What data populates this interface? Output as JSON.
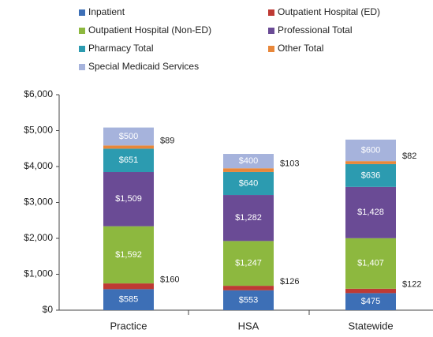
{
  "chart_data": {
    "type": "stacked_bar",
    "categories": [
      "Practice",
      "HSA",
      "Statewide"
    ],
    "ylim": [
      0,
      6000
    ],
    "yticks": [
      {
        "value": 0,
        "label": "$0"
      },
      {
        "value": 1000,
        "label": "$1,000"
      },
      {
        "value": 2000,
        "label": "$2,000"
      },
      {
        "value": 3000,
        "label": "$3,000"
      },
      {
        "value": 4000,
        "label": "$4,000"
      },
      {
        "value": 5000,
        "label": "$5,000"
      },
      {
        "value": 6000,
        "label": "$6,000"
      }
    ],
    "series": [
      {
        "name": "Inpatient",
        "color": "#3d6fb6",
        "values": [
          585,
          553,
          475
        ],
        "value_labels": [
          "$585",
          "$553",
          "$475"
        ]
      },
      {
        "name": "Outpatient Hospital (ED)",
        "color": "#be3a34",
        "values": [
          160,
          126,
          122
        ],
        "value_labels": [
          "$160",
          "$126",
          "$122"
        ]
      },
      {
        "name": "Outpatient Hospital (Non-ED)",
        "color": "#8db83f",
        "values": [
          1592,
          1247,
          1407
        ],
        "value_labels": [
          "$1,592",
          "$1,247",
          "$1,407"
        ]
      },
      {
        "name": "Professional Total",
        "color": "#6a4b95",
        "values": [
          1509,
          1282,
          1428
        ],
        "value_labels": [
          "$1,509",
          "$1,282",
          "$1,428"
        ]
      },
      {
        "name": "Pharmacy Total",
        "color": "#2c9bb0",
        "values": [
          651,
          640,
          636
        ],
        "value_labels": [
          "$651",
          "$640",
          "$636"
        ]
      },
      {
        "name": "Other Total",
        "color": "#e8873a",
        "values": [
          89,
          103,
          82
        ],
        "value_labels": [
          "$89",
          "$103",
          "$82"
        ]
      },
      {
        "name": "Special Medicaid Services",
        "color": "#a6b3dc",
        "values": [
          500,
          400,
          600
        ],
        "value_labels": [
          "$500",
          "$400",
          "$600"
        ]
      }
    ]
  }
}
